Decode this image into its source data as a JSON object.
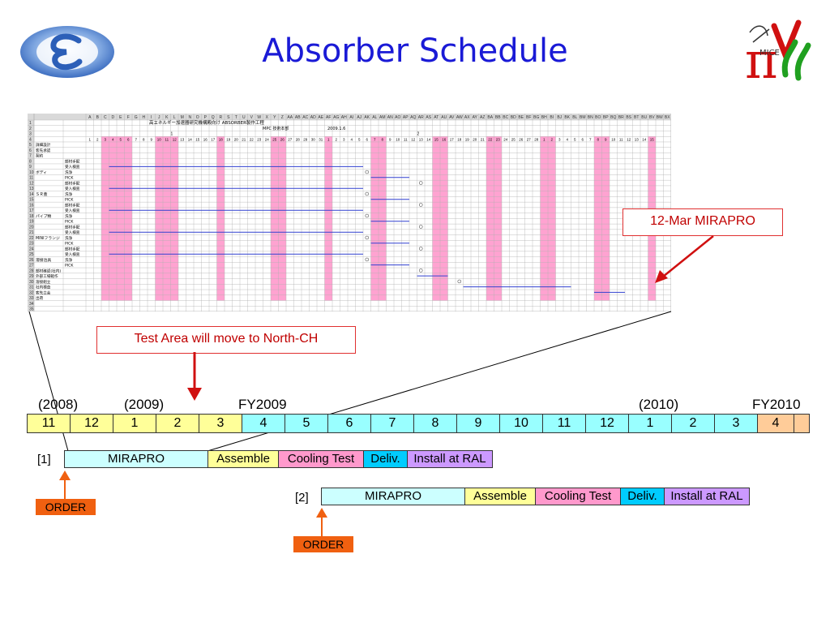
{
  "slide": {
    "title": "Absorber Schedule"
  },
  "spreadsheet": {
    "header_line": "高エネルギー加速器研究機構殿向け ABSORBER製作工程",
    "sub_line": "MPC 技術本部",
    "date": "2009.1.6",
    "column_letters": [
      "A",
      "B",
      "C",
      "D",
      "E",
      "F",
      "G",
      "H",
      "I",
      "J",
      "K",
      "L",
      "M",
      "N",
      "O",
      "P",
      "Q",
      "R",
      "S",
      "T",
      "U",
      "V",
      "W",
      "X",
      "Y",
      "Z",
      "AA",
      "AB",
      "AC",
      "AD",
      "AE",
      "AF",
      "AG",
      "AH",
      "AI",
      "AJ",
      "AK",
      "AL",
      "AM",
      "AN",
      "AO",
      "AP",
      "AQ",
      "AR",
      "AS",
      "AT",
      "AU",
      "AV",
      "AW",
      "AX",
      "AY",
      "AZ",
      "BA",
      "BB",
      "BC",
      "BD",
      "BE",
      "BF",
      "BG",
      "BH",
      "BI",
      "BJ",
      "BK",
      "BL",
      "BM",
      "BN",
      "BO",
      "BP",
      "BQ",
      "BR",
      "BS",
      "BT",
      "BU",
      "BV",
      "BW",
      "BX"
    ],
    "month_marks": [
      "1",
      "2"
    ],
    "row_labels": [
      "詳細設計",
      "客先承認",
      "契約",
      "部材手配",
      "受入検査",
      "洗浄",
      "PICK",
      "部材手配",
      "受入検査",
      "洗浄",
      "PICK",
      "部材手配",
      "受入検査",
      "洗浄",
      "PICK",
      "部材手配",
      "受入検査",
      "洗浄",
      "PICK",
      "部材手配",
      "受入検査",
      "洗浄",
      "PICK",
      "部材確認(社内)",
      "外部工場軽作",
      "溶接組立",
      "社内検査",
      "客先立会",
      "出荷"
    ],
    "group_labels": [
      "ボディ",
      "ＳＲ蓋",
      "パイプ類",
      "MINIフランジ",
      "溶接治具"
    ]
  },
  "callouts": {
    "mirapro": "12-Mar MIRAPRO",
    "test_area": "Test Area will move to North-CH"
  },
  "timeline": {
    "year_labels": [
      "(2008)",
      "(2009)",
      "FY2009",
      "(2010)",
      "FY2010"
    ],
    "months": [
      {
        "label": "11",
        "color": "#ffff99"
      },
      {
        "label": "12",
        "color": "#ffff99"
      },
      {
        "label": "1",
        "color": "#ffff99"
      },
      {
        "label": "2",
        "color": "#ffff99"
      },
      {
        "label": "3",
        "color": "#ffff99"
      },
      {
        "label": "4",
        "color": "#99ffff"
      },
      {
        "label": "5",
        "color": "#99ffff"
      },
      {
        "label": "6",
        "color": "#99ffff"
      },
      {
        "label": "7",
        "color": "#99ffff"
      },
      {
        "label": "8",
        "color": "#99ffff"
      },
      {
        "label": "9",
        "color": "#99ffff"
      },
      {
        "label": "10",
        "color": "#99ffff"
      },
      {
        "label": "11",
        "color": "#99ffff"
      },
      {
        "label": "12",
        "color": "#99ffff"
      },
      {
        "label": "1",
        "color": "#99ffff"
      },
      {
        "label": "2",
        "color": "#99ffff"
      },
      {
        "label": "3",
        "color": "#99ffff"
      },
      {
        "label": "4",
        "color": "#ffcc99"
      },
      {
        "label": "",
        "color": "#ffcc99"
      }
    ]
  },
  "plans": [
    {
      "label": "[1]",
      "phases": [
        {
          "label": "MIRAPRO",
          "color": "#ccffff"
        },
        {
          "label": "Assemble",
          "color": "#ffff99"
        },
        {
          "label": "Cooling Test",
          "color": "#ff99cc"
        },
        {
          "label": "Deliv.",
          "color": "#00ccff"
        },
        {
          "label": "Install at RAL",
          "color": "#cc99ff"
        }
      ],
      "order_label": "ORDER"
    },
    {
      "label": "[2]",
      "phases": [
        {
          "label": "MIRAPRO",
          "color": "#ccffff"
        },
        {
          "label": "Assemble",
          "color": "#ffff99"
        },
        {
          "label": "Cooling Test",
          "color": "#ff99cc"
        },
        {
          "label": "Deliv.",
          "color": "#00ccff"
        },
        {
          "label": "Install at RAL",
          "color": "#cc99ff"
        }
      ],
      "order_label": "ORDER"
    }
  ],
  "colors": {
    "title": "#1a1ad6",
    "callout_border": "#e03030",
    "order": "#f06010",
    "plan_line": "#3040d0",
    "weekend": "#ff99cc"
  }
}
